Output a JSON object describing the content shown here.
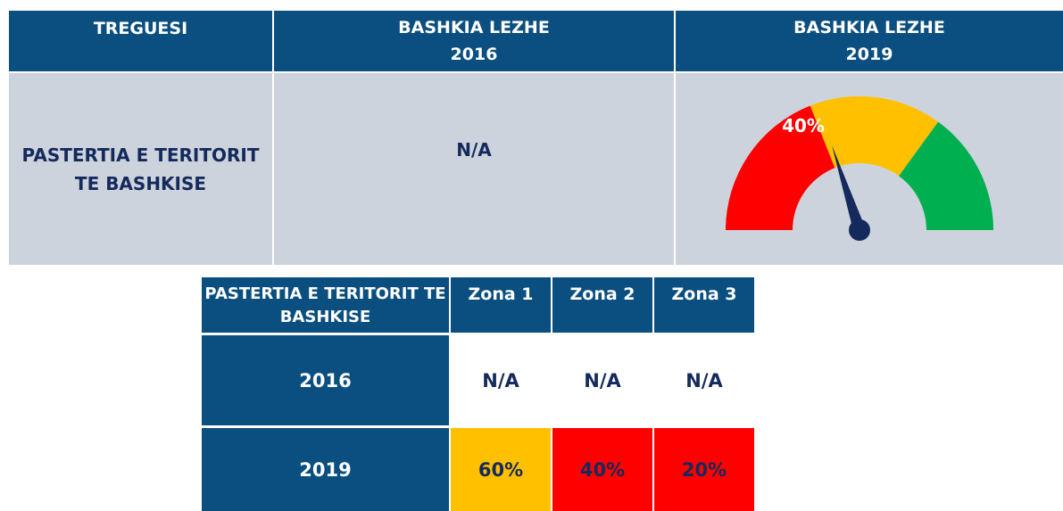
{
  "summary_table": {
    "header": [
      [
        "TREGUESI"
      ],
      [
        "BASHKIA LEZHE",
        "2016"
      ],
      [
        "BASHKIA LEZHE",
        "2019"
      ]
    ],
    "row": {
      "indicator": "PASTERTIA E TERITORIT TE BASHKISE",
      "value_2016": "N/A"
    },
    "gauge": {
      "value": 40,
      "value_label": "40%",
      "range": [
        0,
        100
      ]
    }
  },
  "zone_table": {
    "header": [
      "PASTERTIA E TERITORIT TE BASHKISE",
      "Zona 1",
      "Zona 2",
      "Zona 3"
    ],
    "rows": [
      [
        "2016",
        "N/A",
        "N/A",
        "N/A"
      ],
      [
        "2019",
        "60%",
        "40%",
        "20%"
      ]
    ]
  }
}
